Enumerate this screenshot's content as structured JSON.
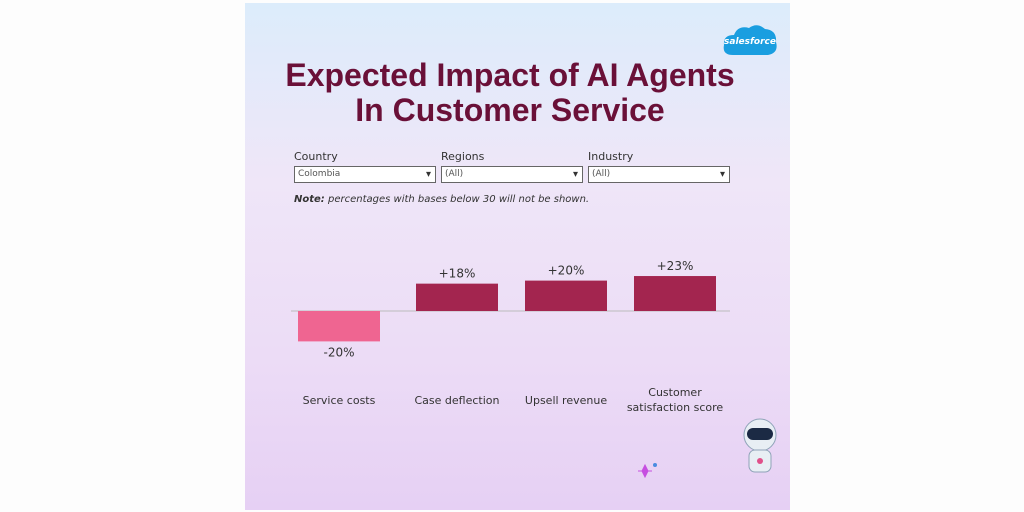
{
  "logo": "salesforce",
  "filters": [
    {
      "label": "Country",
      "value": "Colombia"
    },
    {
      "label": "Regions",
      "value": "(All)"
    },
    {
      "label": "Industry",
      "value": "(All)"
    }
  ],
  "note": {
    "lead": "Note:",
    "text": "percentages with bases below 30 will not be shown."
  },
  "chart_data": {
    "type": "bar",
    "title": [
      "Expected Impact of AI Agents",
      "In Customer Service"
    ],
    "categories": [
      "Service costs",
      "Case deflection",
      "Upsell revenue",
      "Customer satisfaction score"
    ],
    "values": [
      -20,
      18,
      20,
      23
    ],
    "value_labels": [
      "-20%",
      "+18%",
      "+20%",
      "+23%"
    ],
    "colors": [
      "#ef6591",
      "#a3254f",
      "#a3254f",
      "#a3254f"
    ]
  }
}
